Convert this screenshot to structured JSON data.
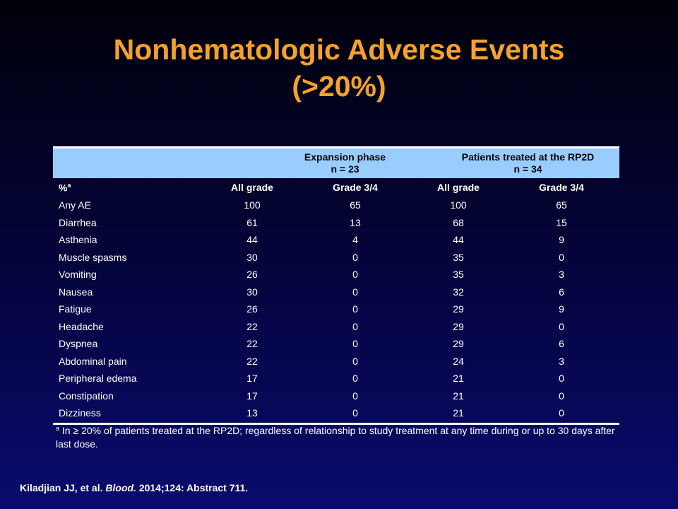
{
  "slide": {
    "title_line1": "Nonhematologic Adverse Events",
    "title_line2": "(>20%)"
  },
  "table": {
    "group1_line1": "Expansion phase",
    "group1_line2": "n = 23",
    "group2_line1": "Patients treated at the RP2D",
    "group2_line2": "n = 34",
    "label_header": "%",
    "label_header_sup": "a",
    "columns": [
      "All grade",
      "Grade 3/4",
      "All grade",
      "Grade 3/4"
    ],
    "rows": [
      {
        "label": "Any AE",
        "values": [
          "100",
          "65",
          "100",
          "65"
        ]
      },
      {
        "label": "Diarrhea",
        "values": [
          "61",
          "13",
          "68",
          "15"
        ]
      },
      {
        "label": "Asthenia",
        "values": [
          "44",
          "4",
          "44",
          "9"
        ]
      },
      {
        "label": "Muscle spasms",
        "values": [
          "30",
          "0",
          "35",
          "0"
        ]
      },
      {
        "label": "Vomiting",
        "values": [
          "26",
          "0",
          "35",
          "3"
        ]
      },
      {
        "label": "Nausea",
        "values": [
          "30",
          "0",
          "32",
          "6"
        ]
      },
      {
        "label": "Fatigue",
        "values": [
          "26",
          "0",
          "29",
          "9"
        ]
      },
      {
        "label": "Headache",
        "values": [
          "22",
          "0",
          "29",
          "0"
        ]
      },
      {
        "label": "Dyspnea",
        "values": [
          "22",
          "0",
          "29",
          "6"
        ]
      },
      {
        "label": "Abdominal pain",
        "values": [
          "22",
          "0",
          "24",
          "3"
        ]
      },
      {
        "label": "Peripheral edema",
        "values": [
          "17",
          "0",
          "21",
          "0"
        ]
      },
      {
        "label": "Constipation",
        "values": [
          "17",
          "0",
          "21",
          "0"
        ]
      },
      {
        "label": "Dizziness",
        "values": [
          "13",
          "0",
          "21",
          "0"
        ]
      }
    ]
  },
  "footnote": {
    "marker": "a",
    "text": "In ≥ 20% of patients treated at the RP2D; regardless of relationship to study treatment at any time during or up to 30 days after last dose."
  },
  "citation": {
    "authors": "Kiladjian JJ, et al.",
    "journal": "Blood.",
    "details": "2014;124: Abstract 711."
  }
}
